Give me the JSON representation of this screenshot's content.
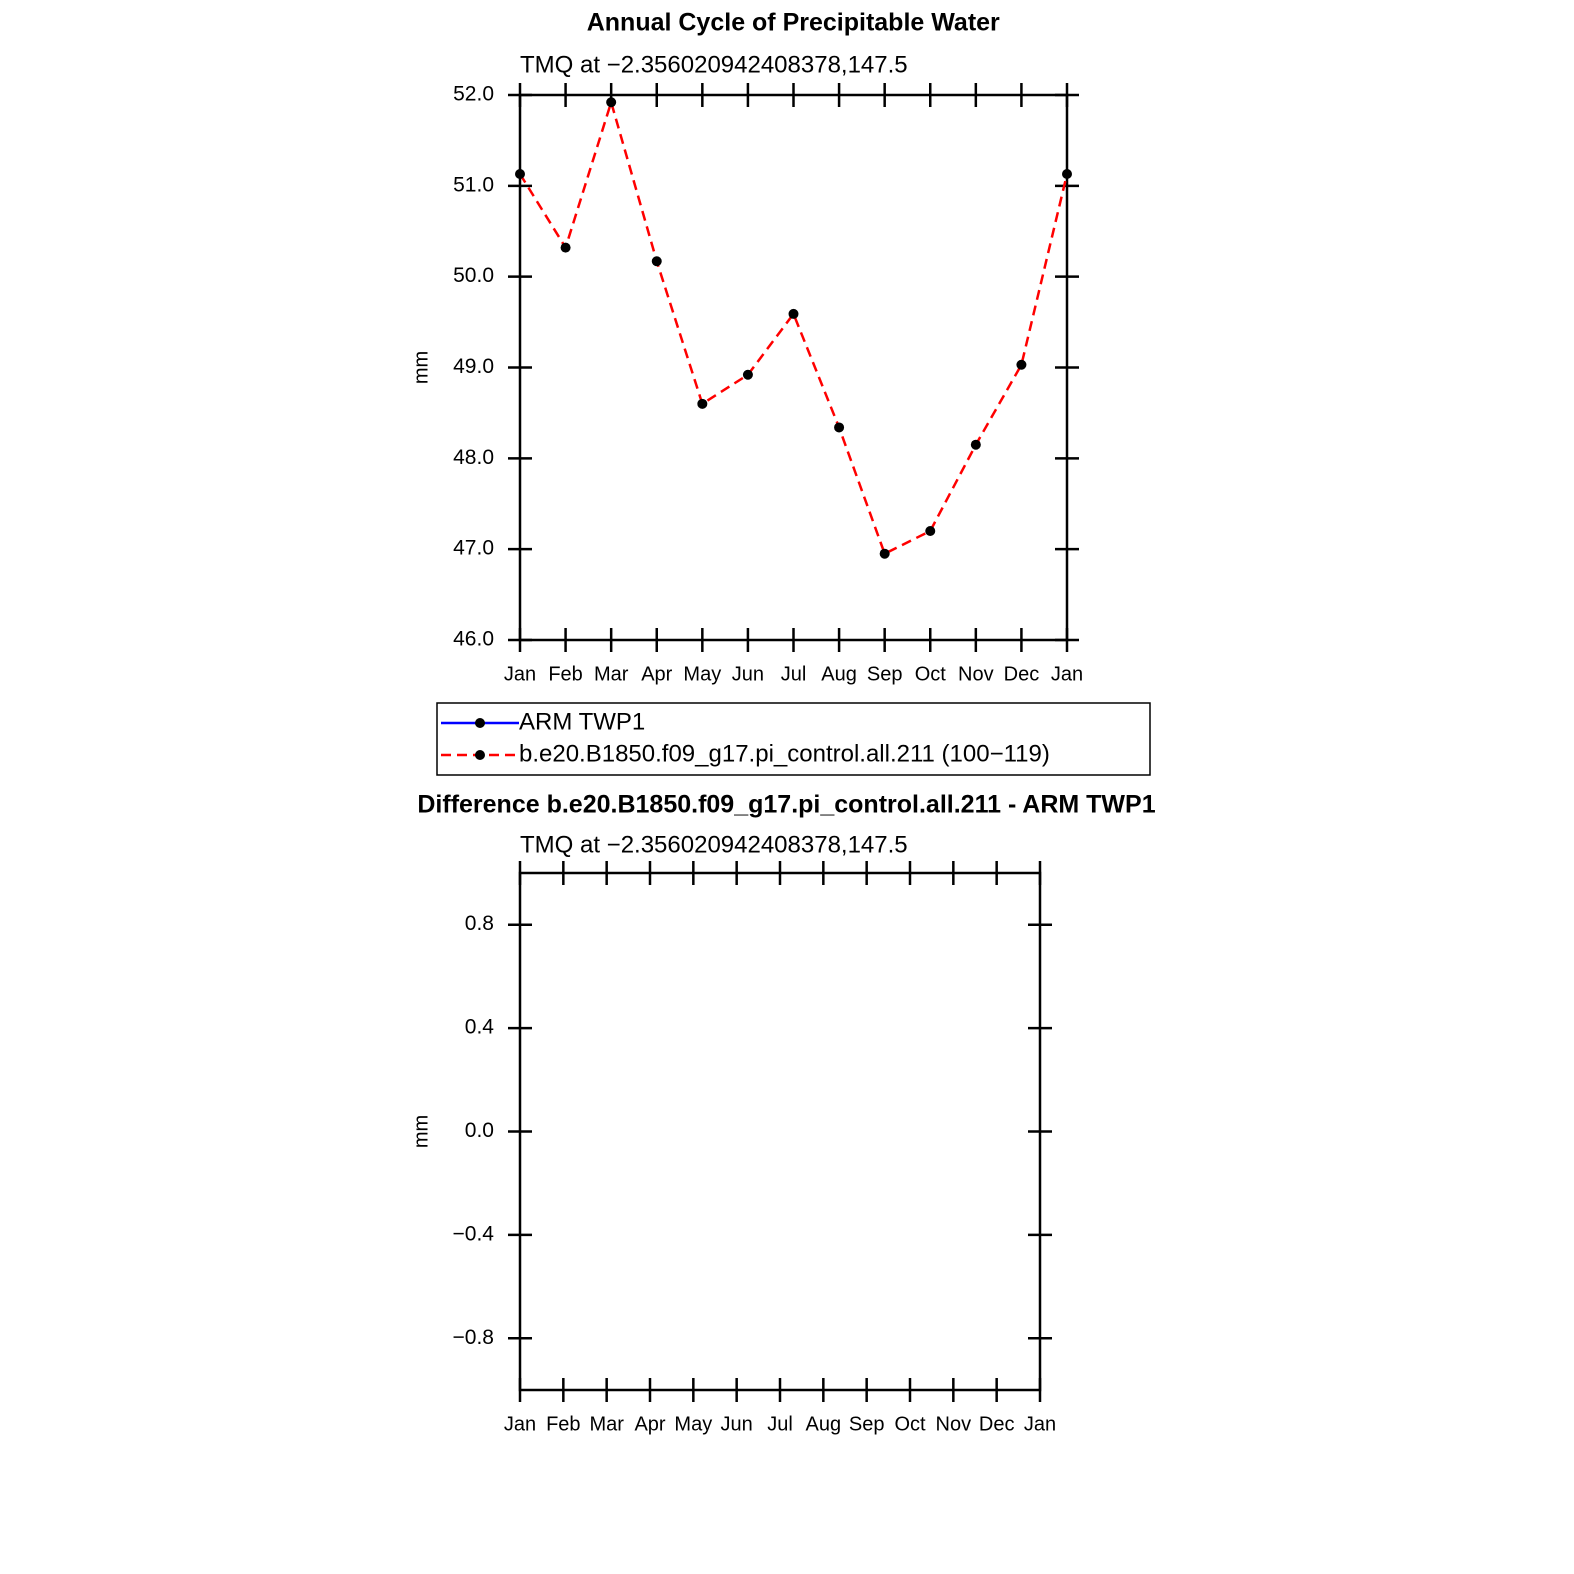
{
  "chart_data": [
    {
      "type": "line",
      "title": "Annual Cycle of Precipitable Water",
      "subtitle": "TMQ at −2.356020942408378,147.5",
      "y_label": "mm",
      "categories": [
        "Jan",
        "Feb",
        "Mar",
        "Apr",
        "May",
        "Jun",
        "Jul",
        "Aug",
        "Sep",
        "Oct",
        "Nov",
        "Dec",
        "Jan"
      ],
      "series": [
        {
          "name": "ARM TWP1",
          "color": "#0000ff",
          "dashed": false,
          "values": [
            null,
            null,
            null,
            null,
            null,
            null,
            null,
            null,
            null,
            null,
            null,
            null,
            null
          ]
        },
        {
          "name": "b.e20.B1850.f09_g17.pi_control.all.211 (100−119)",
          "color": "#ff0000",
          "dashed": true,
          "values": [
            51.13,
            50.32,
            51.92,
            50.17,
            48.6,
            48.92,
            49.59,
            48.34,
            46.95,
            47.2,
            48.15,
            49.03,
            51.13
          ]
        }
      ],
      "ylim": [
        46,
        52
      ],
      "yticks": [
        {
          "value": 46,
          "label": "46.0"
        },
        {
          "value": 47,
          "label": "47.0"
        },
        {
          "value": 48,
          "label": "48.0"
        },
        {
          "value": 49,
          "label": "49.0"
        },
        {
          "value": 50,
          "label": "50.0"
        },
        {
          "value": 51,
          "label": "51.0"
        },
        {
          "value": 52,
          "label": "52.0"
        }
      ],
      "legend": true
    },
    {
      "type": "line",
      "title": "Difference b.e20.B1850.f09_g17.pi_control.all.211 - ARM TWP1",
      "subtitle": "TMQ at −2.356020942408378,147.5",
      "y_label": "mm",
      "categories": [
        "Jan",
        "Feb",
        "Mar",
        "Apr",
        "May",
        "Jun",
        "Jul",
        "Aug",
        "Sep",
        "Oct",
        "Nov",
        "Dec",
        "Jan"
      ],
      "series": [],
      "ylim": [
        -1,
        1
      ],
      "yticks": [
        {
          "value": -0.8,
          "label": "−0.8"
        },
        {
          "value": -0.4,
          "label": "−0.4"
        },
        {
          "value": 0,
          "label": "0.0"
        },
        0.4,
        0.8
      ],
      "legend": false
    }
  ]
}
